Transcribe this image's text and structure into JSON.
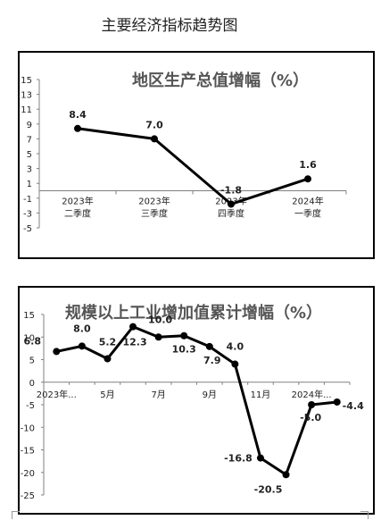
{
  "page_title": "主要经济指标趋势图",
  "chart_data": [
    {
      "type": "line",
      "title": "地区生产总值增幅（%）",
      "categories": [
        "2023年\n二季度",
        "2023年\n三季度",
        "2023年\n四季度",
        "2024年\n一季度"
      ],
      "values": [
        8.4,
        7.0,
        -1.8,
        1.6
      ],
      "data_labels": [
        "8.4",
        "7.0",
        "-1.8",
        "1.6"
      ],
      "ylim": [
        -5,
        15
      ],
      "yticks": [
        -5,
        -3,
        -1,
        1,
        3,
        5,
        7,
        9,
        11,
        13,
        15
      ],
      "x_axis_at": 0,
      "grid": false,
      "legend": "none",
      "colors": {
        "line": "#000000",
        "marker": "#000000",
        "title": "#555555",
        "axis": "#808080"
      }
    },
    {
      "type": "line",
      "title": "规模以上工业增加值累计增幅（%）",
      "x_tick_labels": [
        "2023年...",
        "5月",
        "7月",
        "9月",
        "11月",
        "2024年..."
      ],
      "x_tick_positions": [
        0.5,
        2.5,
        4.5,
        6.5,
        8.5,
        10.5
      ],
      "values": [
        6.8,
        8.0,
        5.2,
        12.3,
        10.0,
        10.3,
        7.9,
        4.0,
        -16.8,
        -20.5,
        -5.0,
        -4.4
      ],
      "data_labels": [
        "6.8",
        "8.0",
        "5.2",
        "12.3",
        "10.0",
        "10.3",
        "7.9",
        "4.0",
        "-16.8",
        "-20.5",
        "-5.0",
        "-4.4"
      ],
      "ylim": [
        -25,
        15
      ],
      "yticks": [
        -25,
        -20,
        -15,
        -10,
        -5,
        0,
        5,
        10,
        15
      ],
      "x_axis_at": 0,
      "grid": false,
      "legend": "none",
      "colors": {
        "line": "#000000",
        "marker": "#000000",
        "title": "#555555",
        "axis": "#808080"
      }
    }
  ]
}
